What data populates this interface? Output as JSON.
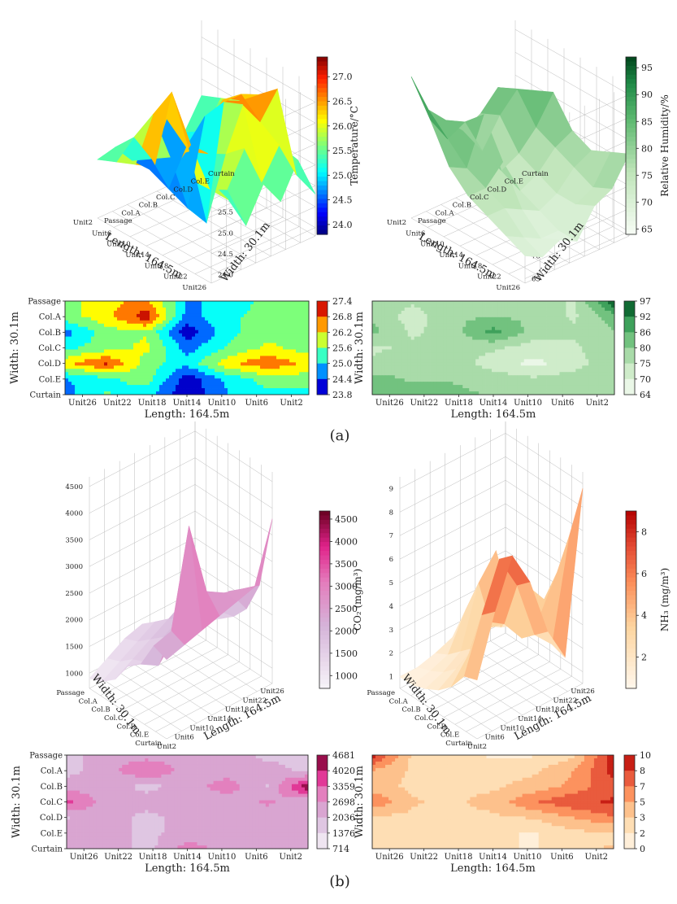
{
  "panels": {
    "a": "(a)",
    "b": "(b)"
  },
  "units": [
    "Unit26",
    "Unit22",
    "Unit18",
    "Unit14",
    "Unit10",
    "Unit6",
    "Unit2"
  ],
  "units3d": [
    "Unit2",
    "Unit6",
    "Unit10",
    "Unit14",
    "Unit18",
    "Unit22",
    "Unit26"
  ],
  "rows": [
    "Passage",
    "Col.A",
    "Col.B",
    "Col.C",
    "Col.D",
    "Col.E",
    "Curtain"
  ],
  "rows3d": [
    "Curtain",
    "Col.E",
    "Col.D",
    "Col.C",
    "Col.B",
    "Col.A",
    "Passage"
  ],
  "labels": {
    "length": "Length: 164.5m",
    "width": "Width: 30.1m",
    "temp": "Temperature/°C",
    "rh": "Relative Humidity/%",
    "co2": "CO₂ (mg/m³)",
    "nh3": "NH₃ (mg/m³)"
  },
  "chart_data": [
    {
      "id": "temp3d",
      "type": "surface3d",
      "cmap": "jet",
      "zticks": [
        "27.0",
        "26.5",
        "26.0",
        "25.5",
        "25.0",
        "24.5",
        "24.0"
      ],
      "zlim": [
        23.8,
        27.4
      ],
      "colorbar_ticks": [
        "27.0",
        "26.5",
        "26.0",
        "25.5",
        "25.0",
        "24.5",
        "24.0"
      ],
      "colorbar_range": [
        23.8,
        27.4
      ],
      "colorbar_label": "Temperature/°C",
      "grid": [
        [
          25.2,
          25.4,
          25.6,
          25.8,
          26.0,
          26.0,
          26.2
        ],
        [
          25.3,
          25.8,
          26.6,
          27.4,
          26.4,
          25.6,
          25.6
        ],
        [
          24.8,
          25.1,
          25.4,
          25.8,
          26.0,
          25.4,
          24.8
        ],
        [
          24.4,
          24.2,
          24.0,
          23.9,
          25.8,
          26.2,
          25.6
        ],
        [
          25.4,
          25.0,
          26.0,
          26.6,
          26.8,
          25.2,
          25.0
        ],
        [
          24.9,
          25.2,
          26.2,
          26.6,
          26.2,
          25.9,
          25.8
        ],
        [
          25.6,
          25.8,
          26.0,
          26.4,
          26.8,
          25.0,
          24.8
        ]
      ]
    },
    {
      "id": "rh3d",
      "type": "surface3d",
      "cmap": "greens",
      "zticks": [
        "95",
        "90",
        "85",
        "80",
        "75",
        "70",
        "65"
      ],
      "zlim": [
        64,
        97
      ],
      "colorbar_ticks": [
        "95",
        "90",
        "85",
        "80",
        "75",
        "70",
        "65"
      ],
      "colorbar_range": [
        64,
        97
      ],
      "colorbar_label": "Relative Humidity/%",
      "grid": [
        [
          95,
          88,
          80,
          76,
          74,
          72,
          70
        ],
        [
          86,
          82,
          78,
          76,
          74,
          70,
          68
        ],
        [
          82,
          84,
          88,
          80,
          72,
          68,
          70
        ],
        [
          78,
          76,
          74,
          72,
          70,
          68,
          68
        ],
        [
          80,
          82,
          76,
          74,
          72,
          72,
          74
        ],
        [
          84,
          86,
          80,
          78,
          76,
          74,
          76
        ],
        [
          82,
          84,
          86,
          80,
          78,
          80,
          82
        ]
      ]
    },
    {
      "id": "temp2d",
      "type": "heatmap",
      "cmap": "jet",
      "colorbar_ticks": [
        "27.4",
        "26.8",
        "26.2",
        "25.6",
        "25.0",
        "24.4",
        "23.8"
      ],
      "colorbar_range": [
        23.8,
        27.4
      ],
      "levels": 7,
      "grid": [
        [
          25.6,
          26.2,
          26.5,
          24.8,
          24.9,
          25.6,
          25.6
        ],
        [
          25.6,
          26.2,
          27.2,
          24.6,
          25.2,
          25.6,
          25.6
        ],
        [
          24.6,
          25.6,
          25.8,
          24.0,
          25.2,
          25.6,
          25.6
        ],
        [
          25.2,
          25.6,
          26.0,
          24.6,
          25.4,
          26.0,
          25.6
        ],
        [
          26.2,
          27.0,
          25.6,
          25.0,
          26.2,
          26.8,
          26.2
        ],
        [
          24.8,
          25.2,
          25.6,
          24.0,
          25.0,
          25.6,
          25.6
        ],
        [
          24.6,
          25.4,
          25.0,
          23.9,
          24.8,
          25.2,
          25.2
        ]
      ]
    },
    {
      "id": "rh2d",
      "type": "heatmap",
      "cmap": "greens",
      "colorbar_ticks": [
        "97",
        "92",
        "86",
        "80",
        "75",
        "70",
        "64"
      ],
      "colorbar_range": [
        64,
        97
      ],
      "levels": 6,
      "grid": [
        [
          80,
          76,
          80,
          78,
          80,
          74,
          96
        ],
        [
          80,
          72,
          80,
          80,
          80,
          74,
          84
        ],
        [
          82,
          74,
          78,
          88,
          78,
          76,
          80
        ],
        [
          74,
          76,
          78,
          76,
          72,
          74,
          80
        ],
        [
          76,
          80,
          78,
          72,
          68,
          72,
          80
        ],
        [
          82,
          80,
          80,
          78,
          76,
          78,
          80
        ],
        [
          84,
          82,
          82,
          80,
          80,
          80,
          80
        ]
      ]
    },
    {
      "id": "co23d",
      "type": "surface3d",
      "cmap": "pinks",
      "zticks": [
        "4500",
        "4000",
        "3500",
        "3000",
        "2500",
        "2000",
        "1500",
        "1000"
      ],
      "zlim": [
        714,
        4681
      ],
      "colorbar_ticks": [
        "4500",
        "4000",
        "3500",
        "3000",
        "2500",
        "2000",
        "1500",
        "1000"
      ],
      "colorbar_range": [
        714,
        4681
      ],
      "colorbar_label": "CO₂ (mg/m³)",
      "grid": [
        [
          2200,
          2300,
          2400,
          2500,
          2600,
          2700,
          3800
        ],
        [
          2300,
          2400,
          4200,
          2800,
          2600,
          2500,
          2400
        ],
        [
          1800,
          1600,
          2000,
          1900,
          2200,
          2300,
          1800
        ],
        [
          1600,
          1500,
          1800,
          2000,
          2200,
          1800,
          1500
        ],
        [
          1200,
          1400,
          1600,
          1800,
          2000,
          1700,
          1300
        ],
        [
          1000,
          1200,
          1400,
          1600,
          1500,
          1300,
          1100
        ],
        [
          900,
          1100,
          1300,
          1400,
          1200,
          1100,
          1000
        ]
      ]
    },
    {
      "id": "nh33d",
      "type": "surface3d",
      "cmap": "oranges",
      "zticks": [
        "9",
        "8",
        "7",
        "6",
        "5",
        "4",
        "3",
        "2",
        "1"
      ],
      "zlim": [
        0.5,
        9.5
      ],
      "colorbar_ticks": [
        "8",
        "6",
        "4",
        "2"
      ],
      "colorbar_range": [
        0.5,
        9.0
      ],
      "colorbar_label": "NH₃ (mg/m³)",
      "grid": [
        [
          3.0,
          5.5,
          7.5,
          6.0,
          3.5,
          2.0,
          8.8
        ],
        [
          2.8,
          5.0,
          7.0,
          5.5,
          3.0,
          2.2,
          6.5
        ],
        [
          2.0,
          3.0,
          4.0,
          3.5,
          2.5,
          3.0,
          4.5
        ],
        [
          1.5,
          2.0,
          2.5,
          3.0,
          3.5,
          4.0,
          3.0
        ],
        [
          1.2,
          1.5,
          2.0,
          4.5,
          5.5,
          2.5,
          1.8
        ],
        [
          1.0,
          1.2,
          1.5,
          3.0,
          4.0,
          1.5,
          1.2
        ],
        [
          1.0,
          1.0,
          1.2,
          1.5,
          1.5,
          1.2,
          1.0
        ]
      ]
    },
    {
      "id": "co22d",
      "type": "heatmap",
      "cmap": "pinks",
      "colorbar_ticks": [
        "4681",
        "4020",
        "3359",
        "2698",
        "2036",
        "1376",
        "714"
      ],
      "colorbar_range": [
        714,
        4681
      ],
      "levels": 6,
      "grid": [
        [
          1800,
          2400,
          2400,
          2400,
          2400,
          1800,
          1800
        ],
        [
          1800,
          2400,
          3400,
          2400,
          2400,
          2400,
          1800
        ],
        [
          2400,
          2400,
          1800,
          2400,
          3000,
          2000,
          4500
        ],
        [
          3600,
          2400,
          2400,
          2400,
          2400,
          2800,
          2200
        ],
        [
          2000,
          2400,
          1800,
          2400,
          2400,
          2400,
          2400
        ],
        [
          2400,
          2400,
          1800,
          2400,
          2400,
          2400,
          2400
        ],
        [
          2400,
          2400,
          1800,
          3000,
          2400,
          2400,
          2400
        ]
      ]
    },
    {
      "id": "nh32d",
      "type": "heatmap",
      "cmap": "oranges",
      "colorbar_ticks": [
        "10",
        "8",
        "7",
        "5",
        "3",
        "2",
        "0"
      ],
      "colorbar_range": [
        0,
        10
      ],
      "levels": 6,
      "grid": [
        [
          9.0,
          3.0,
          2.0,
          1.5,
          1.5,
          3.0,
          9.5
        ],
        [
          5.0,
          3.0,
          2.5,
          2.5,
          3.0,
          5.0,
          9.0
        ],
        [
          4.0,
          3.0,
          3.0,
          3.0,
          4.0,
          5.5,
          8.0
        ],
        [
          6.5,
          3.5,
          3.0,
          4.0,
          6.5,
          8.0,
          8.5
        ],
        [
          3.0,
          3.0,
          3.0,
          3.0,
          3.5,
          5.0,
          6.5
        ],
        [
          3.0,
          3.0,
          2.0,
          2.0,
          1.5,
          3.0,
          3.0
        ],
        [
          3.0,
          3.0,
          2.5,
          2.0,
          1.5,
          3.0,
          3.5
        ]
      ]
    }
  ]
}
